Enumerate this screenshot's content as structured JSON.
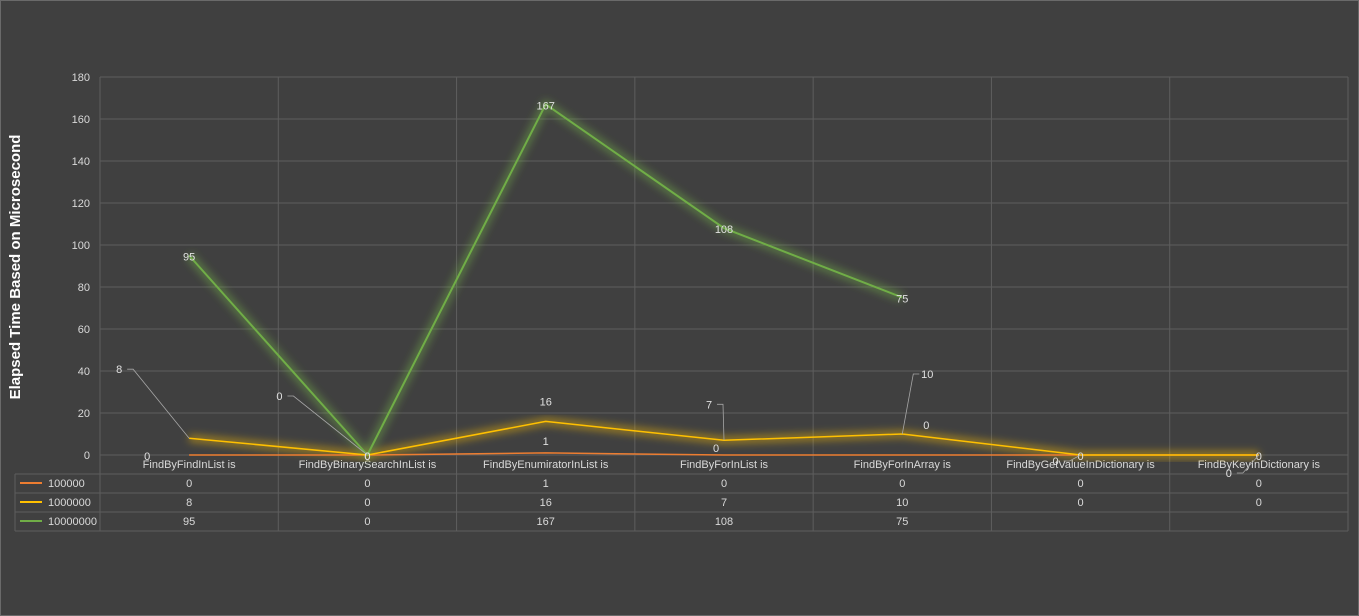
{
  "chart_data": {
    "type": "line",
    "title": "",
    "xlabel": "",
    "ylabel": "Elapsed Time Based on Microsecond",
    "ylim": [
      0,
      180
    ],
    "ytick_step": 20,
    "yticks": [
      "0",
      "20",
      "40",
      "60",
      "80",
      "100",
      "120",
      "140",
      "160",
      "180"
    ],
    "grid": true,
    "legend": "data-table-below",
    "categories": [
      "FindByFindInList is",
      "FindByBinarySearchInList is",
      "FindByEnumiratorInList is",
      "FindByForInList is",
      "FindByForInArray is",
      "FindByGetValueInDictionary is",
      "FindByKeyInDictionary is"
    ],
    "series": [
      {
        "name": "100000",
        "color": "#ed7d31",
        "values": [
          0,
          0,
          1,
          0,
          0,
          0,
          0
        ]
      },
      {
        "name": "1000000",
        "color": "#ffc000",
        "values": [
          8,
          0,
          16,
          7,
          10,
          0,
          0
        ]
      },
      {
        "name": "10000000",
        "color": "#70ad47",
        "values": [
          95,
          0,
          167,
          108,
          75,
          null,
          null
        ]
      }
    ],
    "data_table": true
  },
  "colors": {
    "background": "#404040",
    "grid": "#5e5e5e",
    "text": "#d9d9d9",
    "leader": "#a6a6a6"
  }
}
